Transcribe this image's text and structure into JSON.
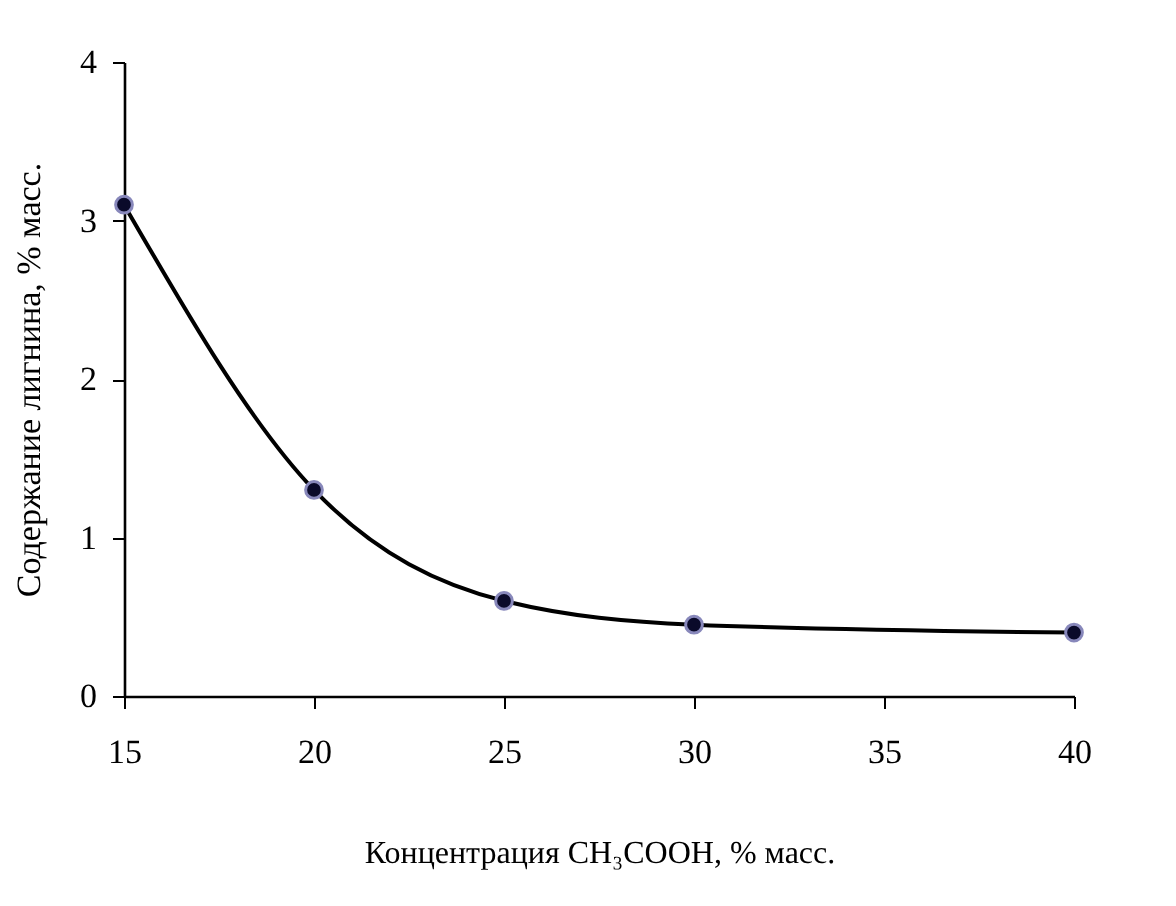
{
  "chart_data": {
    "type": "line",
    "xlabel": "Концентрация CH₃COOH, % масс.",
    "ylabel": "Содержание лигнина, % масс.",
    "x": [
      15,
      20,
      25,
      30,
      40
    ],
    "series": [
      {
        "color": "#000000",
        "values": [
          3.1,
          1.3,
          0.6,
          0.45,
          0.4
        ]
      }
    ],
    "xlim": [
      15,
      40
    ],
    "xticks": [
      15,
      20,
      25,
      30,
      35,
      40
    ],
    "ylim": [
      0,
      4
    ],
    "yticks": [
      0,
      1,
      2,
      3,
      4
    ],
    "grid": false,
    "marker": "circle",
    "line_style": "solid"
  }
}
